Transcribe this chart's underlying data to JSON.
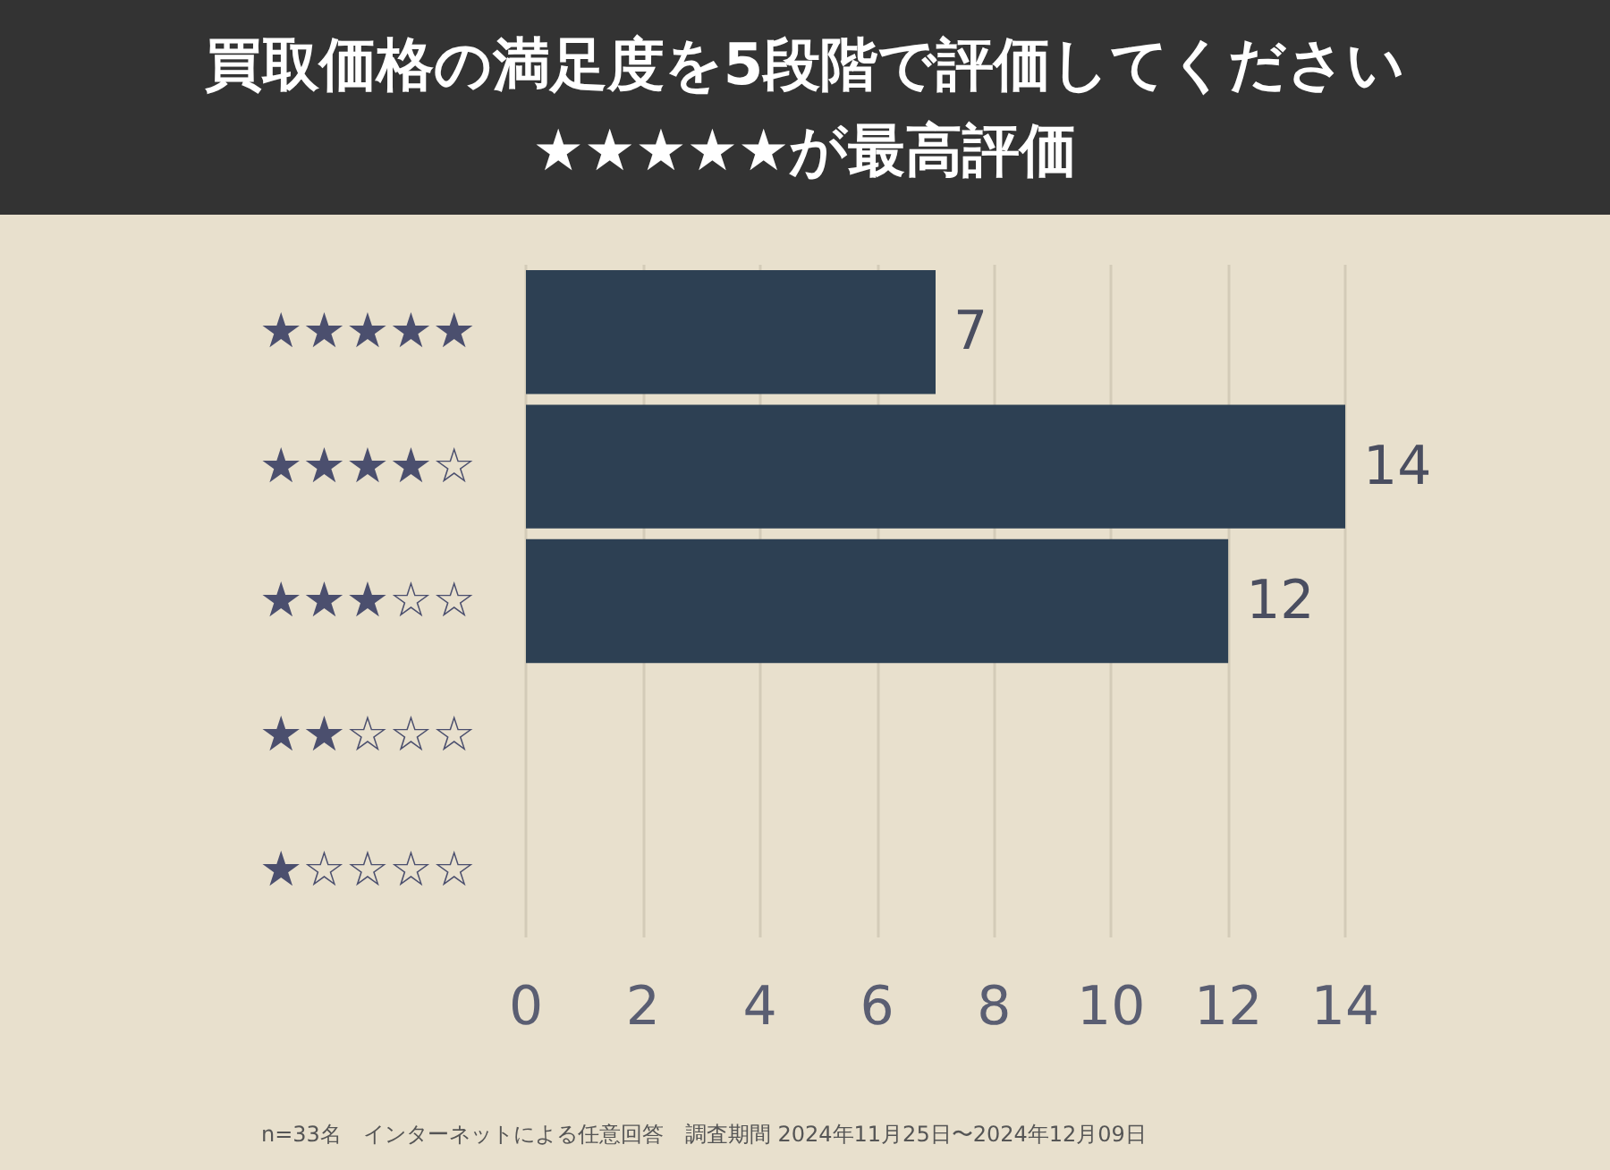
{
  "chart_data": {
    "type": "bar",
    "orientation": "horizontal",
    "title": "買取価格の満足度を5段階で評価してください\n★★★★★が最高評価",
    "categories": [
      "★★★★★",
      "★★★★☆",
      "★★★☆☆",
      "★★☆☆☆",
      "★☆☆☆☆"
    ],
    "values": [
      7,
      14,
      12,
      0,
      0
    ],
    "value_labels": [
      "7",
      "14",
      "12",
      null,
      null
    ],
    "color": "#2d4053",
    "xlim": [
      0,
      14
    ],
    "xticks": [
      0,
      2,
      4,
      6,
      8,
      10,
      12,
      14
    ],
    "grid": "x",
    "annotations": [
      "n=33名　インターネットによる任意回答　調査期間 2024年11月25日〜2024年12月09日"
    ]
  }
}
